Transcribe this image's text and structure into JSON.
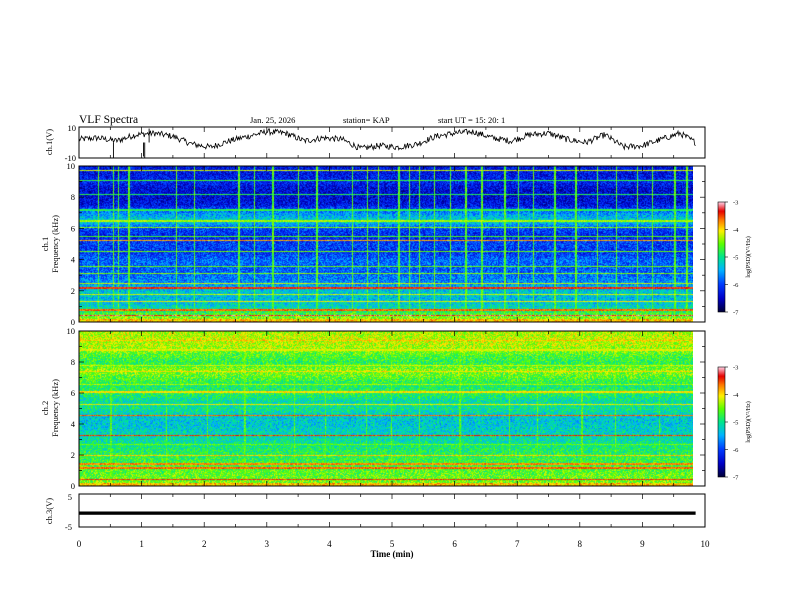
{
  "header": {
    "title": "VLF Spectra",
    "date": "Jan. 25, 2026",
    "station": "station= KAP",
    "start": "start  UT =   15: 20: 1"
  },
  "chart_data": [
    {
      "type": "line",
      "id": "ch1",
      "ylabel": "ch.1(V)",
      "ylim": [
        -10,
        10
      ],
      "yticks": [
        {
          "value": 10,
          "label": "10"
        },
        {
          "value": -10,
          "label": "-10"
        }
      ],
      "xlim": [
        0,
        10
      ],
      "x_end": 9.85,
      "baseline_profile": [
        [
          0,
          2
        ],
        [
          0.3,
          3
        ],
        [
          0.6,
          1
        ],
        [
          0.9,
          5
        ],
        [
          1.2,
          6
        ],
        [
          1.5,
          4
        ],
        [
          1.8,
          -1
        ],
        [
          2.1,
          -3
        ],
        [
          2.4,
          1
        ],
        [
          2.7,
          4
        ],
        [
          3.0,
          7
        ],
        [
          3.3,
          6
        ],
        [
          3.6,
          1
        ],
        [
          3.9,
          3
        ],
        [
          4.2,
          2
        ],
        [
          4.5,
          -4
        ],
        [
          4.8,
          -2
        ],
        [
          5.1,
          -3
        ],
        [
          5.4,
          -1
        ],
        [
          5.7,
          4
        ],
        [
          6.0,
          6
        ],
        [
          6.3,
          7
        ],
        [
          6.6,
          3
        ],
        [
          6.9,
          1
        ],
        [
          7.2,
          5
        ],
        [
          7.5,
          6
        ],
        [
          7.8,
          2
        ],
        [
          8.1,
          0
        ],
        [
          8.4,
          5
        ],
        [
          8.7,
          -3
        ],
        [
          9.0,
          -2
        ],
        [
          9.3,
          2
        ],
        [
          9.6,
          6
        ],
        [
          9.85,
          0
        ]
      ],
      "spikes": [
        {
          "x": 0.55,
          "y": -10
        },
        {
          "x": 1.03,
          "y": -9
        },
        {
          "x": 1.12,
          "y": 9
        },
        {
          "x": 1.05,
          "y": -12
        }
      ]
    },
    {
      "type": "heatmap",
      "id": "spec1",
      "channel_label": "ch.1",
      "ylabel": "Frequency (kHz)",
      "ylim": [
        0,
        10
      ],
      "yticks": [
        0,
        2,
        4,
        6,
        8,
        10
      ],
      "xlim": [
        0,
        10
      ],
      "x_end": 9.85,
      "colorbar": {
        "label": "log(PSD)(V²/Hz)",
        "range": [
          -7,
          -3
        ],
        "ticks": [
          -3,
          -4,
          -5,
          -6,
          -7
        ]
      },
      "band_profile": [
        [
          0,
          -4.2
        ],
        [
          0.5,
          -4.6
        ],
        [
          1.0,
          -5.2
        ],
        [
          1.5,
          -5.4
        ],
        [
          2.0,
          -5.3
        ],
        [
          2.5,
          -5.6
        ],
        [
          3.0,
          -5.8
        ],
        [
          3.5,
          -5.9
        ],
        [
          4.0,
          -5.8
        ],
        [
          4.5,
          -6.1
        ],
        [
          5.0,
          -6.0
        ],
        [
          5.5,
          -6.2
        ],
        [
          6.0,
          -6.0
        ],
        [
          6.5,
          -5.2
        ],
        [
          7.0,
          -5.6
        ],
        [
          7.5,
          -6.3
        ],
        [
          8.0,
          -6.4
        ],
        [
          8.5,
          -6.4
        ],
        [
          9.0,
          -6.2
        ],
        [
          9.5,
          -6.3
        ],
        [
          10.0,
          -6.3
        ]
      ],
      "lines": [
        {
          "f": 0.45,
          "v": -3.2
        },
        {
          "f": 0.8,
          "v": -3.6
        },
        {
          "f": 1.35,
          "v": -4.1
        },
        {
          "f": 1.8,
          "v": -4.2
        },
        {
          "f": 2.2,
          "v": -3.4
        },
        {
          "f": 2.5,
          "v": -4.2
        },
        {
          "f": 3.15,
          "v": -4.4
        },
        {
          "f": 3.6,
          "v": -4.5
        },
        {
          "f": 4.55,
          "v": -4.5
        },
        {
          "f": 5.25,
          "v": -3.8
        },
        {
          "f": 5.5,
          "v": -4.6
        },
        {
          "f": 6.1,
          "v": -4.4
        },
        {
          "f": 6.5,
          "v": -4.3
        },
        {
          "f": 7.2,
          "v": -4.8
        },
        {
          "f": 8.2,
          "v": -4.8
        },
        {
          "f": 9.1,
          "v": -4.7
        },
        {
          "f": 9.75,
          "v": -4.2
        }
      ],
      "vstreaks": [
        0.3,
        0.55,
        0.62,
        0.78,
        1.55,
        1.85,
        2.55,
        2.8,
        3.1,
        3.52,
        3.8,
        4.38,
        4.62,
        4.8,
        5.12,
        5.3,
        5.45,
        5.7,
        5.95,
        6.2,
        6.45,
        6.82,
        7.05,
        7.28,
        7.62,
        7.95,
        8.31,
        8.62,
        8.95,
        9.2,
        9.55,
        9.73
      ]
    },
    {
      "type": "heatmap",
      "id": "spec2",
      "channel_label": "ch.2",
      "ylabel": "Frequency (kHz)",
      "ylim": [
        0,
        10
      ],
      "yticks": [
        0,
        2,
        4,
        6,
        8,
        10
      ],
      "xlim": [
        0,
        10
      ],
      "x_end": 9.85,
      "colorbar": {
        "label": "log(PSD)(V²/Hz)",
        "range": [
          -7,
          -3
        ],
        "ticks": [
          -3,
          -4,
          -5,
          -6,
          -7
        ]
      },
      "band_profile": [
        [
          0,
          -4.4
        ],
        [
          0.5,
          -4.5
        ],
        [
          1.0,
          -4.6
        ],
        [
          1.5,
          -4.7
        ],
        [
          2.0,
          -4.8
        ],
        [
          2.5,
          -4.9
        ],
        [
          3.0,
          -5.1
        ],
        [
          3.5,
          -5.2
        ],
        [
          4.0,
          -5.3
        ],
        [
          4.5,
          -5.3
        ],
        [
          5.0,
          -5.0
        ],
        [
          5.5,
          -5.1
        ],
        [
          6.0,
          -4.8
        ],
        [
          6.5,
          -4.9
        ],
        [
          7.0,
          -4.6
        ],
        [
          7.5,
          -4.4
        ],
        [
          8.0,
          -4.8
        ],
        [
          8.5,
          -4.6
        ],
        [
          9.0,
          -4.3
        ],
        [
          9.5,
          -4.2
        ],
        [
          10.0,
          -4.3
        ]
      ],
      "lines": [
        {
          "f": 0.45,
          "v": -3.4
        },
        {
          "f": 1.2,
          "v": -3.6
        },
        {
          "f": 1.45,
          "v": -3.7
        },
        {
          "f": 2.0,
          "v": -3.9
        },
        {
          "f": 2.7,
          "v": -4.5
        },
        {
          "f": 3.3,
          "v": -3.5
        },
        {
          "f": 4.6,
          "v": -3.6
        },
        {
          "f": 5.3,
          "v": -4.1
        },
        {
          "f": 6.1,
          "v": -4.0
        },
        {
          "f": 6.6,
          "v": -4.3
        },
        {
          "f": 7.4,
          "v": -4.0
        },
        {
          "f": 7.8,
          "v": -4.2
        },
        {
          "f": 8.8,
          "v": -4.1
        },
        {
          "f": 9.4,
          "v": -3.9
        }
      ],
      "vstreaks": [
        0.5,
        1.4,
        2.05,
        2.65,
        3.45,
        3.95,
        4.6,
        5.0,
        5.45,
        6.1,
        6.9,
        7.35,
        8.05,
        8.6,
        9.3
      ]
    },
    {
      "type": "line",
      "id": "ch3",
      "ylabel": "ch.3(V)",
      "ylim": [
        -5,
        5
      ],
      "yticks": [
        {
          "value": 5,
          "label": "5"
        },
        {
          "value": -5,
          "label": "-5"
        }
      ],
      "xlim": [
        0,
        10
      ],
      "x_end": 9.85,
      "signal_range": [
        -1.3,
        -0.3
      ]
    }
  ],
  "xaxis": {
    "label": "Time (min)",
    "ticks": [
      {
        "value": 0,
        "label": "0"
      },
      {
        "value": 1,
        "label": "1"
      },
      {
        "value": 2,
        "label": "2"
      },
      {
        "value": 3,
        "label": "3"
      },
      {
        "value": 4,
        "label": "4"
      },
      {
        "value": 5,
        "label": "5"
      },
      {
        "value": 6,
        "label": "6"
      },
      {
        "value": 7,
        "label": "7"
      },
      {
        "value": 8,
        "label": "8"
      },
      {
        "value": 9,
        "label": "9"
      },
      {
        "value": 10,
        "label": "10"
      }
    ]
  }
}
